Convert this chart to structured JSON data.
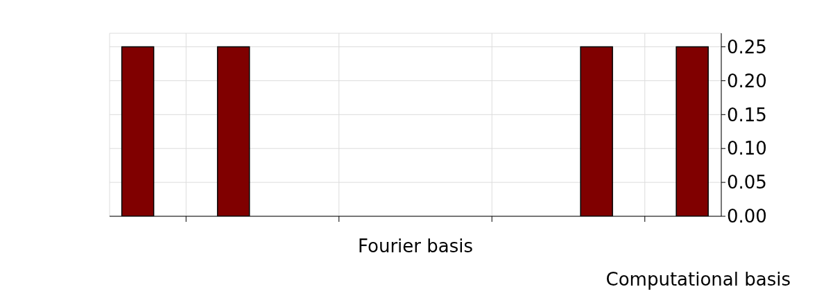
{
  "chart_data": {
    "type": "bar",
    "xlabel": "Fourier basis",
    "annotations": [
      "Computational basis"
    ],
    "categories": [
      null,
      null,
      null,
      null
    ],
    "series": [
      {
        "color": "#800000",
        "values": [
          0.25,
          0,
          0,
          0.25
        ]
      },
      {
        "color": "#800000",
        "values": [
          0,
          0,
          0,
          0
        ]
      },
      {
        "color": "#800000",
        "values": [
          0,
          0,
          0,
          0
        ]
      },
      {
        "color": "#800000",
        "values": [
          0.25,
          0,
          0,
          0.25
        ]
      }
    ],
    "ylim": [
      0,
      0.27
    ],
    "yticks": [
      {
        "value": 0,
        "label": "0.00"
      },
      0.05,
      {
        "value": 0.1,
        "label": "0.10"
      },
      0.15,
      {
        "value": 0.2,
        "label": "0.20"
      },
      0.25
    ],
    "grid": true,
    "tick_labels": "y"
  }
}
